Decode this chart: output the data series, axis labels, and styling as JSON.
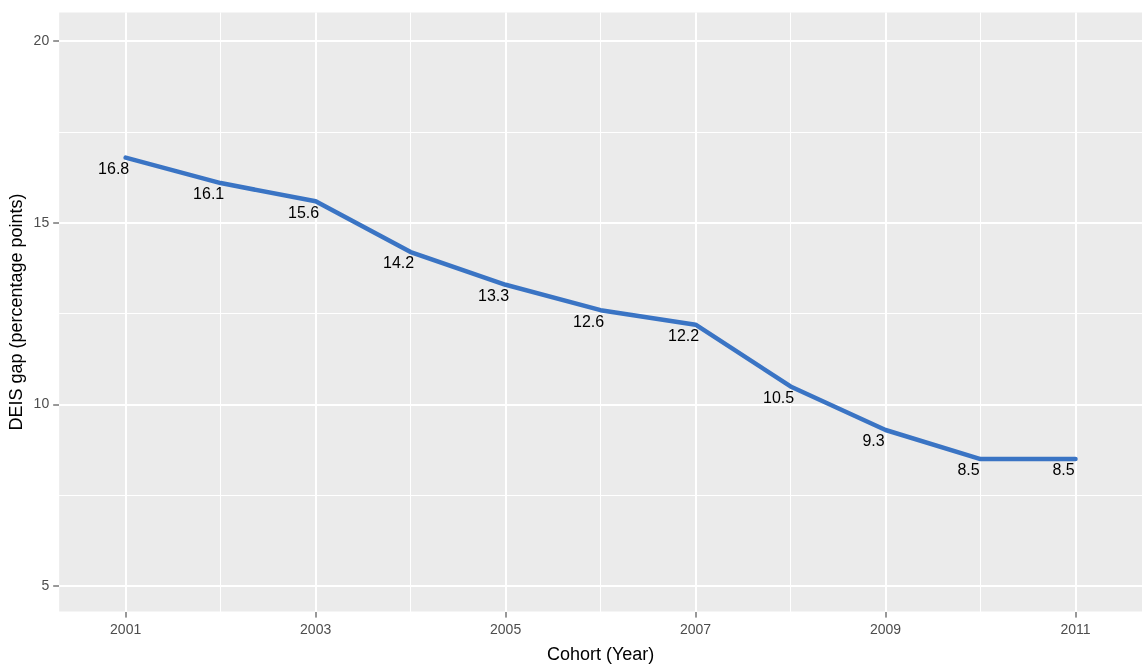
{
  "chart_data": {
    "type": "line",
    "xlabel": "Cohort (Year)",
    "ylabel": "DEIS gap (percentage points)",
    "x": [
      2001,
      2002,
      2003,
      2004,
      2005,
      2006,
      2007,
      2008,
      2009,
      2010,
      2011
    ],
    "series": [
      {
        "color": "#3a74c4",
        "values": [
          16.8,
          16.1,
          15.6,
          14.2,
          13.3,
          12.6,
          12.2,
          10.5,
          9.3,
          8.5,
          8.5
        ]
      }
    ],
    "xlim": [
      2000.3,
      2011.7
    ],
    "xticks": [
      2001,
      {
        "value": 2002,
        "label": null
      },
      2003,
      {
        "value": 2004,
        "label": null
      },
      2005,
      {
        "value": 2006,
        "label": null
      },
      2007,
      {
        "value": 2008,
        "label": null
      },
      2009,
      {
        "value": 2010,
        "label": null
      },
      2011
    ],
    "ylim": [
      4.3,
      20.8
    ],
    "yticks": [
      5,
      {
        "value": 7.5,
        "label": null
      },
      10,
      {
        "value": 12.5,
        "label": null
      },
      15,
      {
        "value": 17.5,
        "label": null
      },
      20
    ],
    "grid": true,
    "marker": "none",
    "line_style": "solid",
    "data_labels": true
  }
}
